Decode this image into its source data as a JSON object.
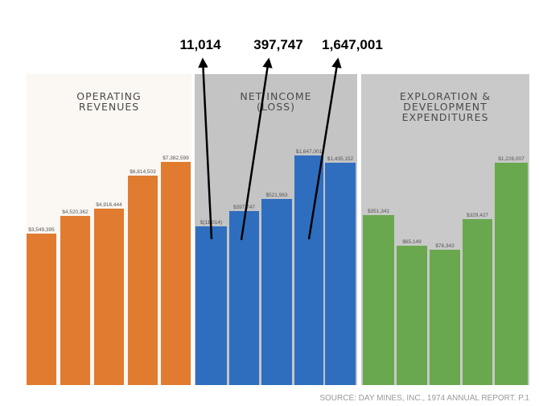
{
  "chart_data": {
    "type": "bar",
    "panels": [
      {
        "title_lines": [
          "OPERATING",
          "REVENUES"
        ],
        "color": "#e07b30",
        "background": "#fbf7f2",
        "values": [
          3549395,
          4520362,
          4916444,
          6814503,
          7382599
        ],
        "labels": [
          "$3,549,395",
          "$4,520,362",
          "$4,916,444",
          "$6,814,503",
          "$7,382,599"
        ]
      },
      {
        "title_lines": [
          "NET INCOME",
          "(LOSS)"
        ],
        "color": "#2f6ebe",
        "background": "#c4c4c4",
        "values": [
          -11014,
          397747,
          521963,
          1647001,
          1435152
        ],
        "labels": [
          "$(11,014)",
          "$397,747",
          "$521,963",
          "$1,647,001",
          "$1,435,152"
        ]
      },
      {
        "title_lines": [
          "EXPLORATION &",
          "DEVELOPMENT",
          "EXPENDITURES"
        ],
        "color": "#6aa84f",
        "background": "#c9c9c9",
        "values": [
          351341,
          65149,
          76343,
          329427,
          1226007
        ],
        "labels": [
          "$351,341",
          "$65,149",
          "$76,343",
          "$329,427",
          "$1,226,007"
        ]
      }
    ],
    "callouts": [
      "11,014",
      "397,747",
      "1,647,001"
    ],
    "source": "SOURCE: DAY MINES, INC., 1974 ANNUAL REPORT. P.1"
  }
}
